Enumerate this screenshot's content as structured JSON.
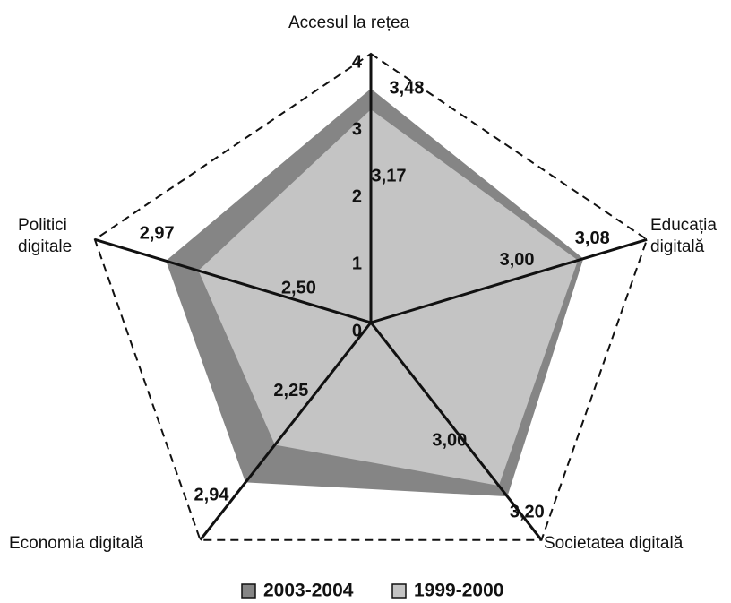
{
  "chart_data": {
    "type": "radar",
    "categories": [
      "Accesul la rețea",
      "Educația digitală",
      "Societatea digitală",
      "Economia digitală",
      "Politici digitale"
    ],
    "rlim": [
      0,
      4
    ],
    "rticks": [
      0,
      1,
      2,
      3,
      4
    ],
    "series": [
      {
        "name": "2003-2004",
        "color": "#858585",
        "values": [
          3.48,
          3.08,
          3.2,
          2.94,
          2.97
        ],
        "value_labels": [
          "3,48",
          "3,08",
          "3,20",
          "2,94",
          "2,97"
        ]
      },
      {
        "name": "1999-2000",
        "color": "#c4c4c4",
        "values": [
          3.17,
          3.0,
          3.0,
          2.25,
          2.5
        ],
        "value_labels": [
          "3,17",
          "3,00",
          "3,00",
          "2,25",
          "2,50"
        ]
      }
    ]
  }
}
